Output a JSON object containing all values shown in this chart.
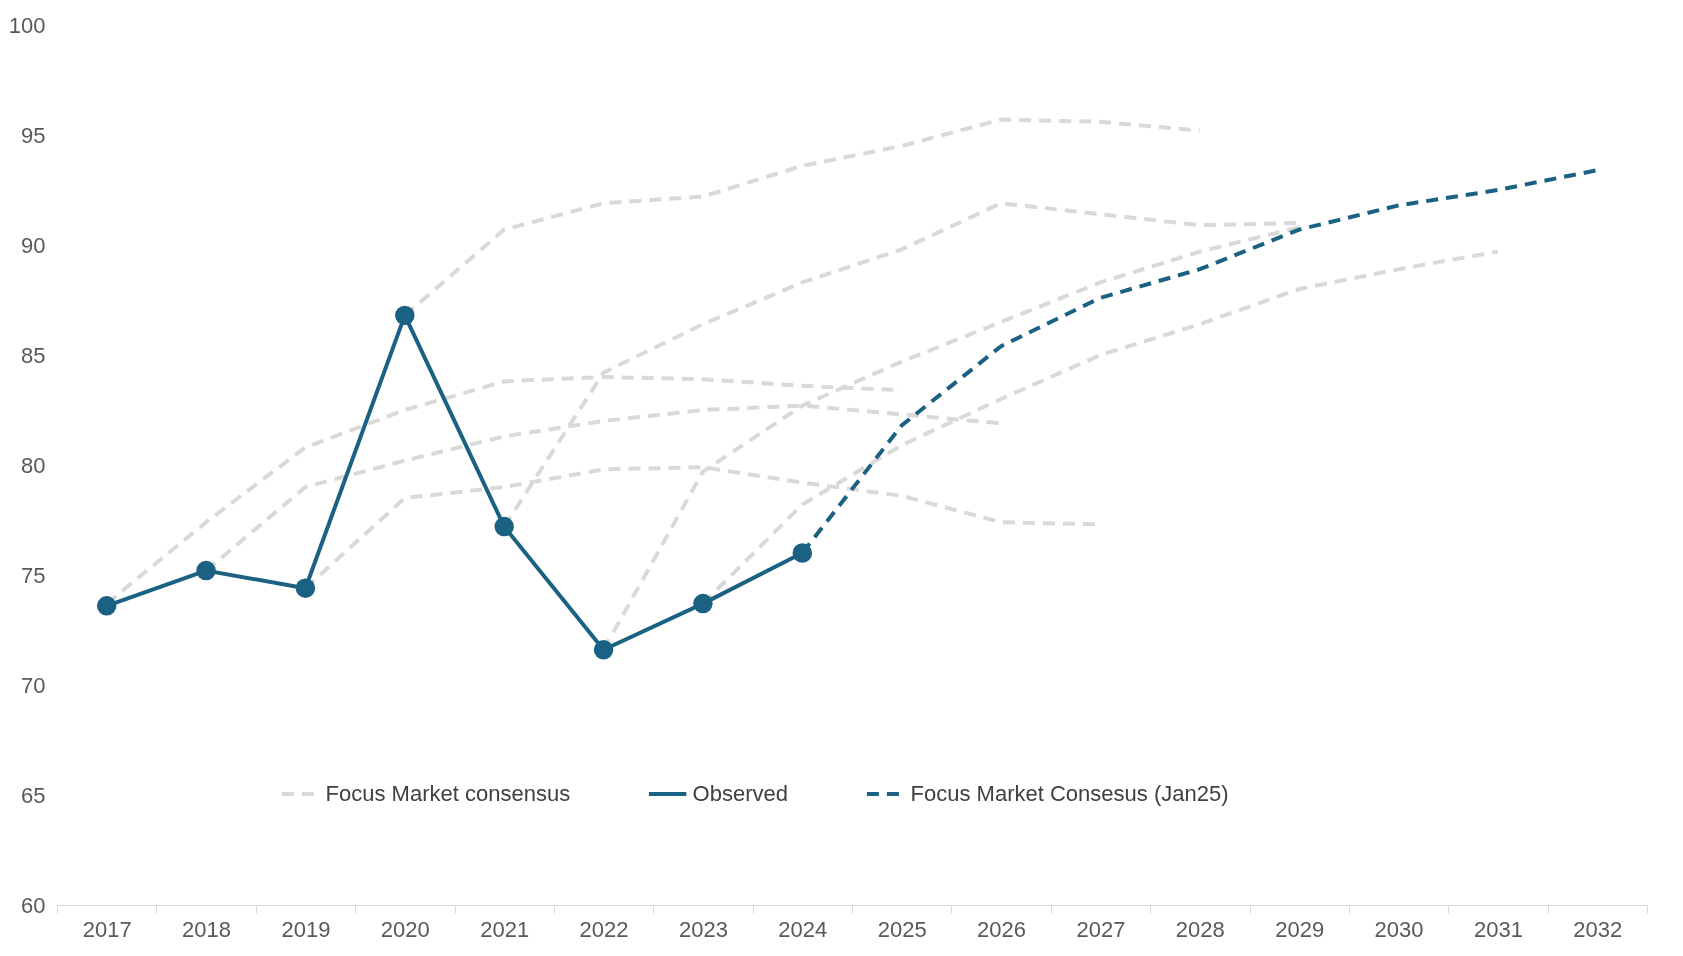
{
  "chart_data": {
    "type": "line",
    "categories": [
      "2017",
      "2018",
      "2019",
      "2020",
      "2021",
      "2022",
      "2023",
      "2024",
      "2025",
      "2026",
      "2027",
      "2028",
      "2029",
      "2030",
      "2031",
      "2032"
    ],
    "ylim": [
      60,
      100
    ],
    "yticks": [
      60,
      65,
      70,
      75,
      80,
      85,
      90,
      95,
      100
    ],
    "grid": false,
    "legend": "bottom",
    "series": [
      {
        "name": "Focus Market consensus",
        "color": "#d9d9d9",
        "line_style": "dashed",
        "values": [
          73.7,
          77.4,
          80.8,
          82.5,
          83.8,
          84.0,
          83.9,
          83.6,
          83.4,
          null,
          null,
          null,
          null,
          null,
          null,
          null
        ]
      },
      {
        "color": "#d9d9d9",
        "line_style": "dashed",
        "values": [
          null,
          75.2,
          79.0,
          80.2,
          81.3,
          82.0,
          82.5,
          82.7,
          82.3,
          81.9,
          null,
          null,
          null,
          null,
          null,
          null
        ]
      },
      {
        "color": "#d9d9d9",
        "line_style": "dashed",
        "values": [
          null,
          null,
          74.4,
          78.5,
          79.0,
          79.8,
          79.9,
          79.2,
          78.6,
          77.4,
          77.3,
          null,
          null,
          null,
          null,
          null
        ]
      },
      {
        "color": "#d9d9d9",
        "line_style": "dashed",
        "values": [
          null,
          null,
          null,
          86.8,
          90.7,
          91.9,
          92.2,
          93.6,
          94.5,
          95.7,
          95.6,
          95.2,
          null,
          null,
          null,
          null
        ]
      },
      {
        "color": "#d9d9d9",
        "line_style": "dashed",
        "values": [
          null,
          null,
          null,
          null,
          77.2,
          84.2,
          86.4,
          88.3,
          89.8,
          91.9,
          91.4,
          90.9,
          91.0,
          null,
          null,
          null
        ]
      },
      {
        "color": "#d9d9d9",
        "line_style": "dashed",
        "values": [
          null,
          null,
          null,
          null,
          null,
          71.6,
          79.7,
          82.7,
          84.7,
          86.5,
          88.3,
          89.7,
          90.8,
          null,
          null,
          null
        ]
      },
      {
        "color": "#d9d9d9",
        "line_style": "dashed",
        "values": [
          null,
          null,
          null,
          null,
          null,
          null,
          73.7,
          78.2,
          80.9,
          83.0,
          85.0,
          86.4,
          88.0,
          88.9,
          89.7,
          null
        ]
      },
      {
        "name": "Observed",
        "color": "#1b6183",
        "line_style": "solid",
        "marker": "circle",
        "values": [
          73.6,
          75.2,
          74.4,
          86.8,
          77.2,
          71.6,
          73.7,
          76.0,
          null,
          null,
          null,
          null,
          null,
          null,
          null,
          null
        ]
      },
      {
        "name": "Focus Market Consesus (Jan25)",
        "color": "#1b6183",
        "line_style": "dashed",
        "values": [
          null,
          null,
          null,
          null,
          null,
          null,
          null,
          76.0,
          81.8,
          85.4,
          87.6,
          88.9,
          90.7,
          91.8,
          92.5,
          93.4
        ]
      }
    ]
  }
}
